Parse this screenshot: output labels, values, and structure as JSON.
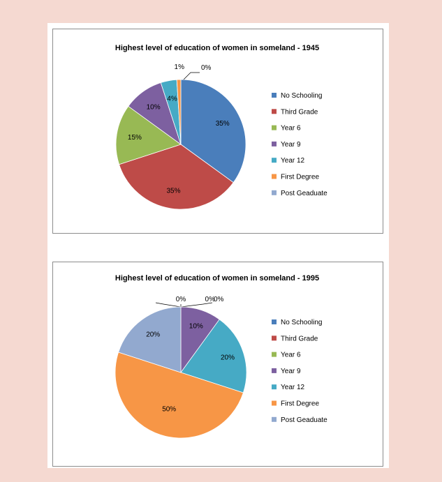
{
  "chart_data": [
    {
      "type": "pie",
      "title": "Highest level of education of women in someland - 1945",
      "categories": [
        "No Schooling",
        "Third Grade",
        "Year 6",
        "Year 9",
        "Year 12",
        "First Degree",
        "Post Geaduate"
      ],
      "values": [
        35,
        35,
        15,
        10,
        4,
        1,
        0
      ],
      "data_labels": [
        "35%",
        "35%",
        "15%",
        "10%",
        "4%",
        "1%",
        "0%"
      ],
      "legend_position": "right"
    },
    {
      "type": "pie",
      "title": "Highest level of education of women in someland - 1995",
      "categories": [
        "No Schooling",
        "Third Grade",
        "Year 6",
        "Year 9",
        "Year 12",
        "First Degree",
        "Post Geaduate"
      ],
      "values": [
        0,
        0,
        0,
        10,
        20,
        50,
        20
      ],
      "data_labels": [
        "0%",
        "0%",
        "0%",
        "10%",
        "20%",
        "50%",
        "20%"
      ],
      "legend_position": "right"
    }
  ],
  "colors": [
    "#4a7ebb",
    "#be4b48",
    "#98b954",
    "#7d60a0",
    "#46aac5",
    "#f79646",
    "#92a9cf"
  ]
}
